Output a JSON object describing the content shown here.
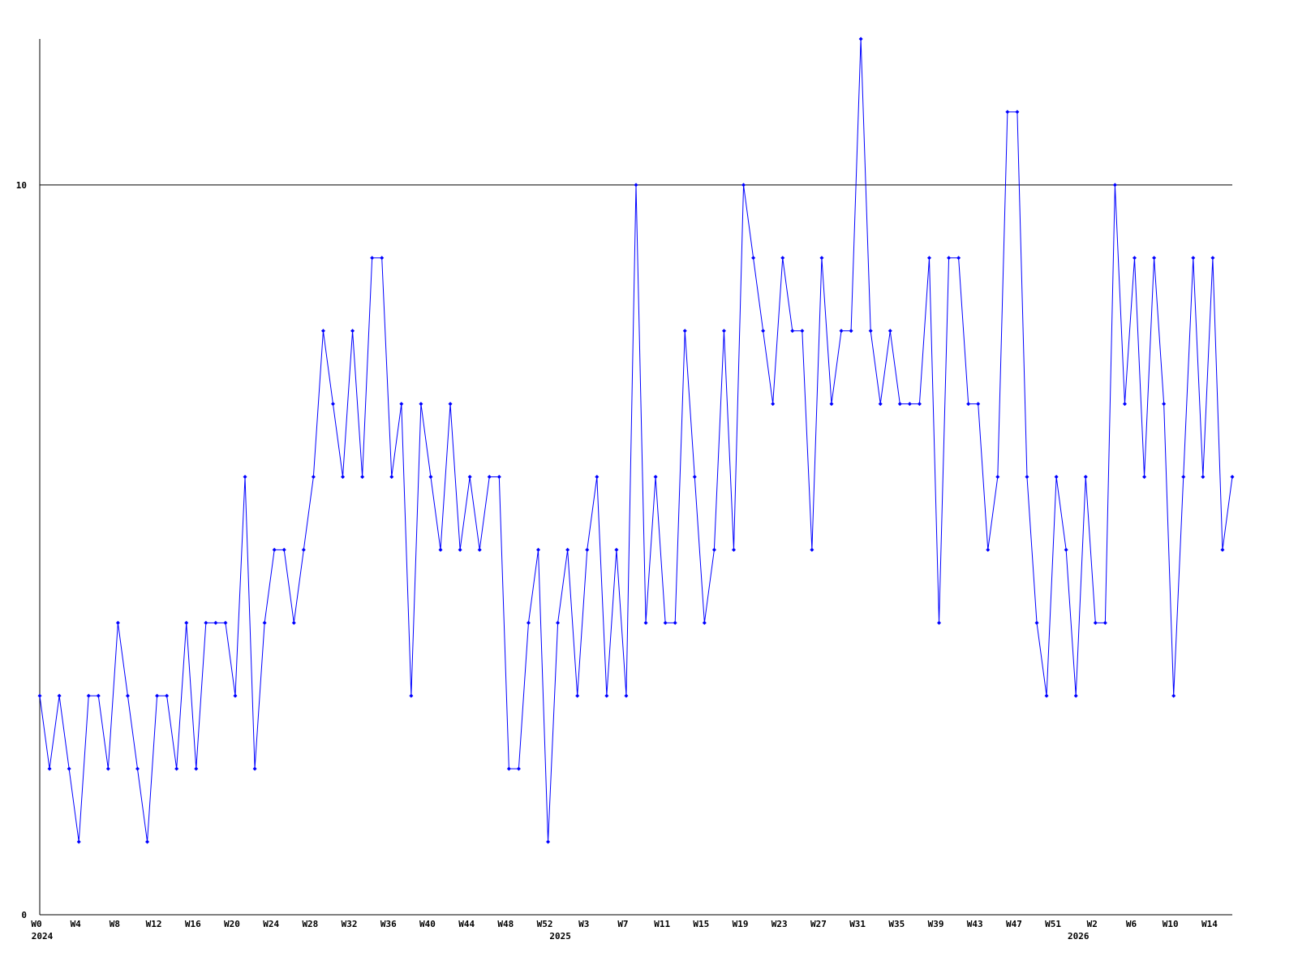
{
  "chart_data": {
    "type": "line",
    "categories": [
      "W0",
      null,
      null,
      null,
      "W4",
      null,
      null,
      null,
      "W8",
      null,
      null,
      null,
      "W12",
      null,
      null,
      null,
      "W16",
      null,
      null,
      null,
      "W20",
      null,
      null,
      null,
      "W24",
      null,
      null,
      null,
      "W28",
      null,
      null,
      null,
      "W32",
      null,
      null,
      null,
      "W36",
      null,
      null,
      null,
      "W40",
      null,
      null,
      null,
      "W44",
      null,
      null,
      null,
      "W48",
      null,
      null,
      null,
      "W52",
      null,
      null,
      null,
      "W3",
      null,
      null,
      null,
      "W7",
      null,
      null,
      null,
      "W11",
      null,
      null,
      null,
      "W15",
      null,
      null,
      null,
      "W19",
      null,
      null,
      null,
      "W23",
      null,
      null,
      null,
      "W27",
      null,
      null,
      null,
      "W31",
      null,
      null,
      null,
      "W35",
      null,
      null,
      null,
      "W39",
      null,
      null,
      null,
      "W43",
      null,
      null,
      null,
      "W47",
      null,
      null,
      null,
      "W51",
      null,
      null,
      null,
      "W2",
      null,
      null,
      null,
      "W6",
      null,
      null,
      null,
      "W10",
      null,
      null,
      null,
      "W14",
      null,
      null
    ],
    "years": [
      "2024",
      null,
      null,
      null,
      null,
      null,
      null,
      null,
      null,
      null,
      null,
      null,
      null,
      null,
      null,
      null,
      null,
      null,
      null,
      null,
      null,
      null,
      null,
      null,
      null,
      null,
      null,
      null,
      null,
      null,
      null,
      null,
      null,
      null,
      null,
      null,
      null,
      null,
      null,
      null,
      null,
      null,
      null,
      null,
      null,
      null,
      null,
      null,
      null,
      null,
      null,
      null,
      null,
      "2025",
      null,
      null,
      null,
      null,
      null,
      null,
      null,
      null,
      null,
      null,
      null,
      null,
      null,
      null,
      null,
      null,
      null,
      null,
      null,
      null,
      null,
      null,
      null,
      null,
      null,
      null,
      null,
      null,
      null,
      null,
      null,
      null,
      null,
      null,
      null,
      null,
      null,
      null,
      null,
      null,
      null,
      null,
      null,
      null,
      null,
      null,
      null,
      null,
      null,
      null,
      null,
      null,
      "2026",
      null,
      null,
      null,
      null,
      null,
      null,
      null,
      null,
      null,
      null,
      null,
      null,
      null,
      null,
      null,
      null
    ],
    "series": [
      {
        "color": "#0000ff",
        "values": [
          3,
          2,
          3,
          2,
          1,
          3,
          3,
          2,
          4,
          3,
          2,
          1,
          3,
          3,
          2,
          4,
          2,
          4,
          4,
          4,
          3,
          6,
          2,
          4,
          5,
          5,
          4,
          5,
          6,
          8,
          7,
          6,
          8,
          6,
          9,
          9,
          6,
          7,
          3,
          7,
          6,
          5,
          7,
          5,
          6,
          5,
          6,
          6,
          2,
          2,
          4,
          5,
          1,
          4,
          5,
          3,
          5,
          6,
          3,
          5,
          3,
          10,
          4,
          6,
          4,
          4,
          8,
          6,
          4,
          5,
          8,
          5,
          10,
          9,
          8,
          7,
          9,
          8,
          8,
          5,
          9,
          7,
          8,
          8,
          12,
          8,
          7,
          8,
          7,
          7,
          7,
          9,
          4,
          9,
          9,
          7,
          7,
          5,
          6,
          11,
          11,
          6,
          4,
          3,
          6,
          5,
          3,
          6,
          4,
          4,
          10,
          7,
          9,
          6,
          9,
          7,
          3,
          6,
          9,
          6,
          9,
          5,
          6
        ]
      }
    ],
    "ylim": [
      0,
      12
    ],
    "yticks": [
      0,
      10
    ],
    "grid": true
  }
}
